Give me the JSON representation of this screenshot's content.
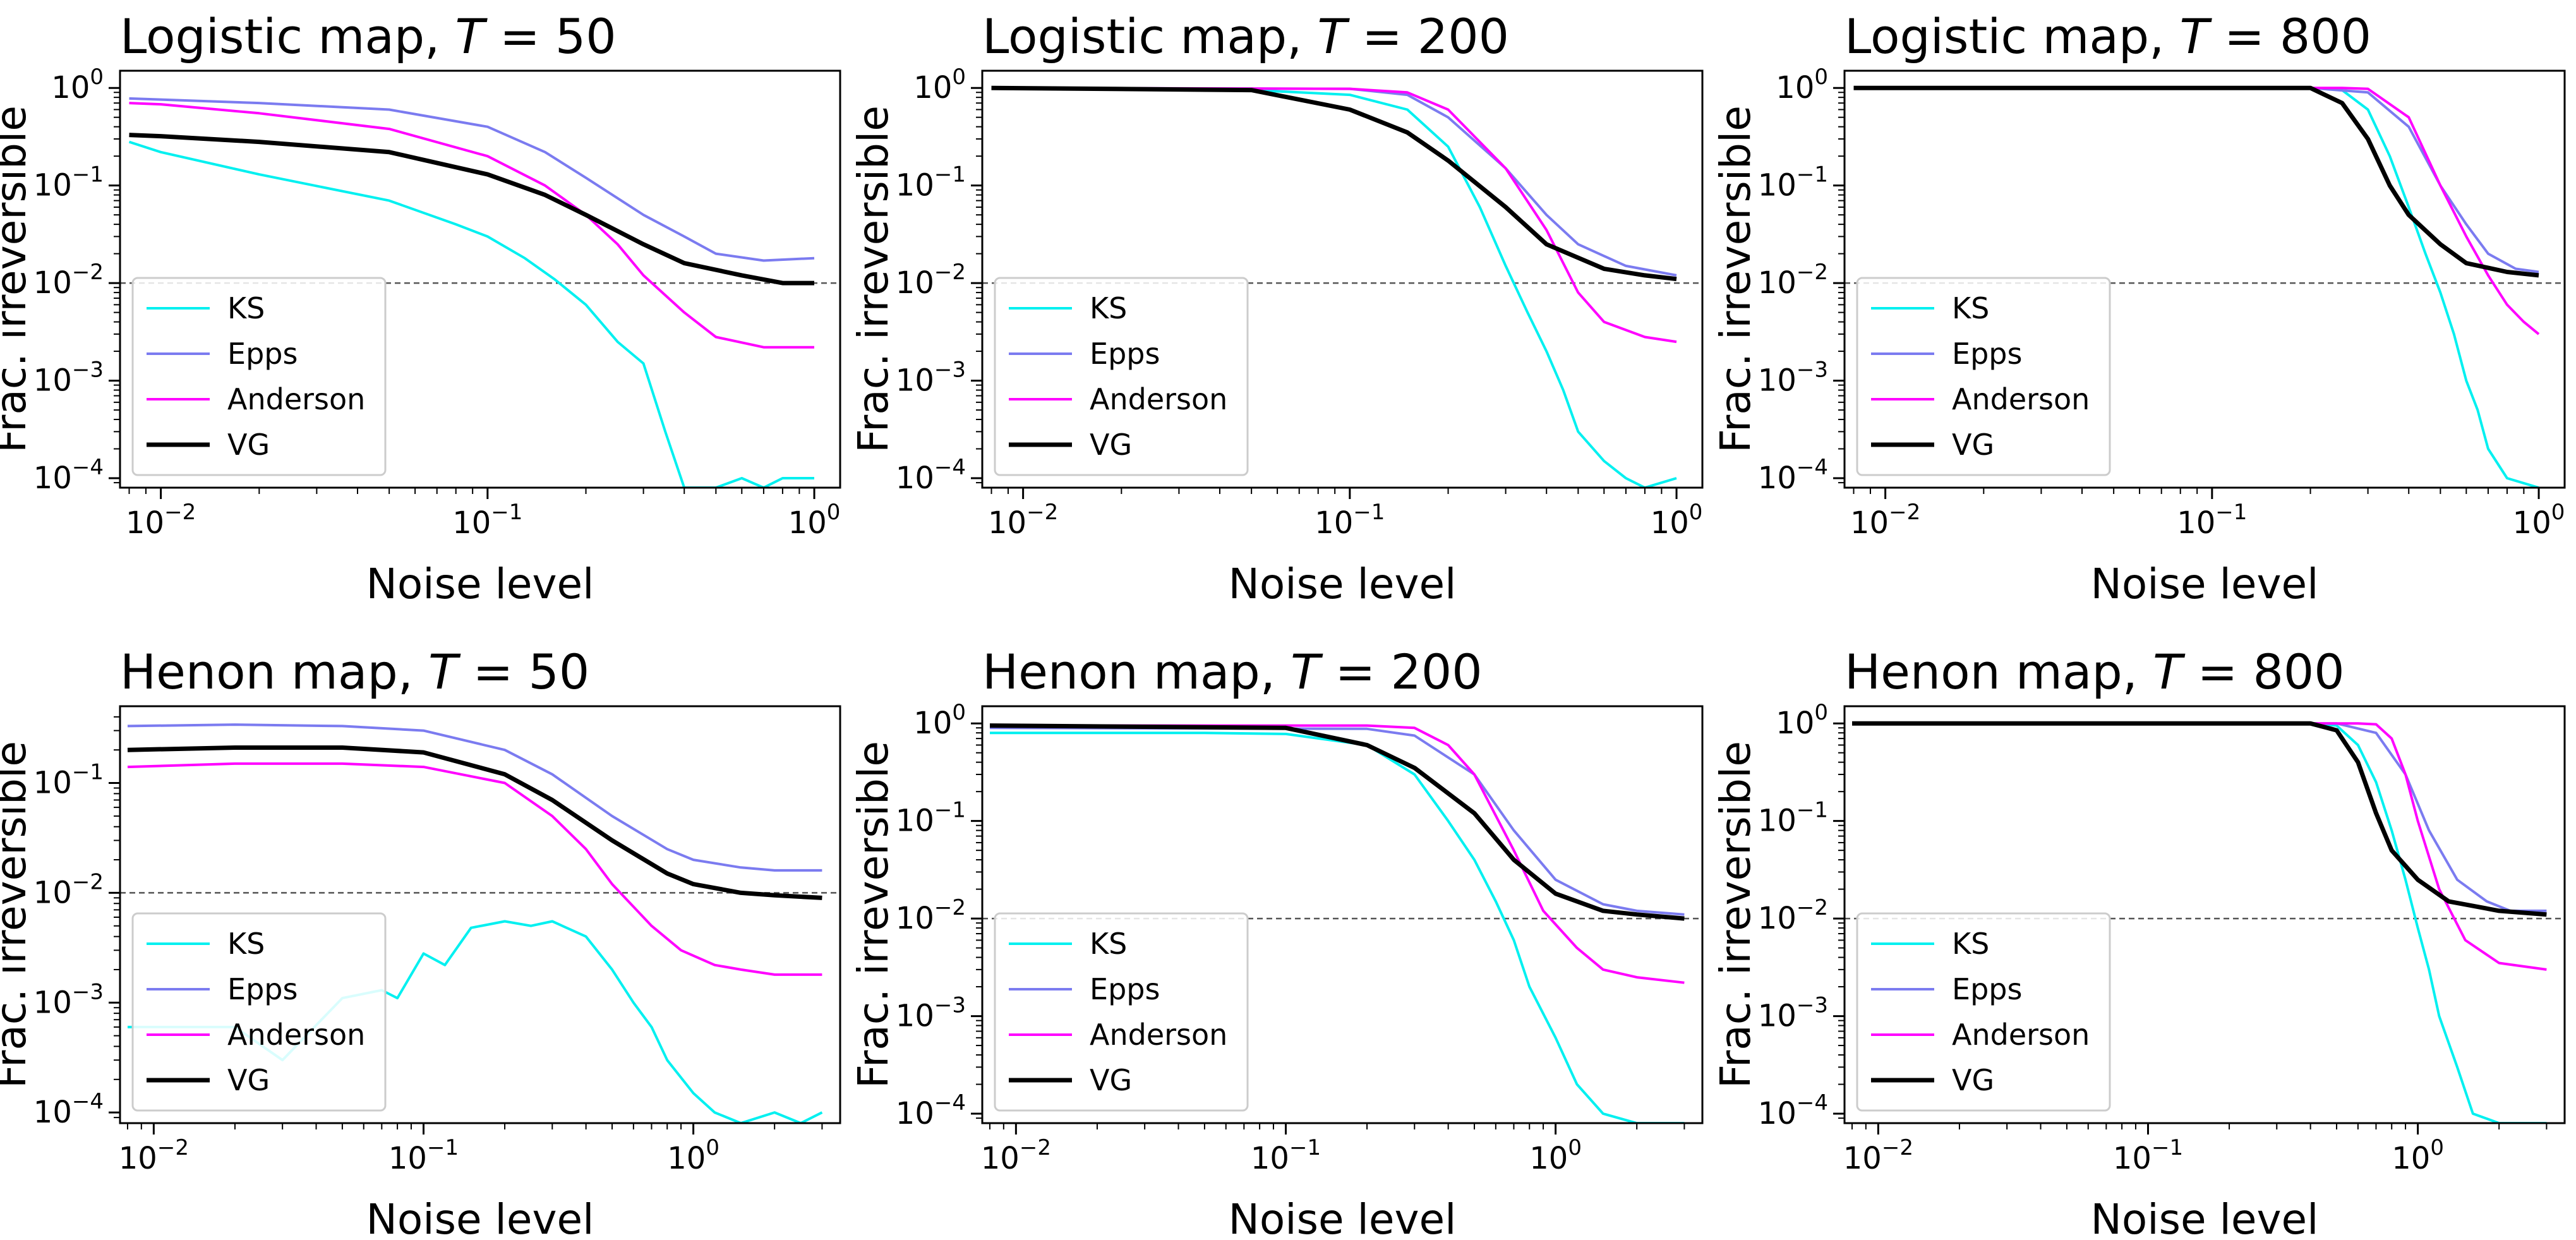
{
  "figure": {
    "xlabel": "Noise level",
    "ylabel": "Frac. irreversible",
    "threshold": 0.01,
    "series_styles": [
      {
        "name": "KS",
        "color": "#00f0f0",
        "width": 4
      },
      {
        "name": "Epps",
        "color": "#7b7bf0",
        "width": 4
      },
      {
        "name": "Anderson",
        "color": "#ff00ff",
        "width": 4
      },
      {
        "name": "VG",
        "color": "#000000",
        "width": 7
      }
    ]
  },
  "chart_data": [
    {
      "type": "line",
      "title_prefix": "Logistic map, ",
      "title_var": "T",
      "title_eq": " = 50",
      "xscale": "log",
      "yscale": "log",
      "xlim": [
        0.0075,
        1.2
      ],
      "ylim": [
        8e-05,
        1.5
      ],
      "xticks": [
        0.01,
        0.1,
        1
      ],
      "xticklabels": [
        [
          "10",
          "−2"
        ],
        [
          "10",
          "−1"
        ],
        [
          "10",
          "0"
        ]
      ],
      "yticks": [
        0.0001,
        0.001,
        0.01,
        0.1,
        1
      ],
      "yticklabels": [
        [
          "10",
          "−4"
        ],
        [
          "10",
          "−3"
        ],
        [
          "10",
          "−2"
        ],
        [
          "10",
          "−1"
        ],
        [
          "10",
          "0"
        ]
      ],
      "legend": [
        "KS",
        "Epps",
        "Anderson",
        "VG"
      ],
      "legend_loc": "lower left",
      "series": [
        {
          "name": "KS",
          "x": [
            0.008,
            0.01,
            0.02,
            0.05,
            0.08,
            0.1,
            0.13,
            0.16,
            0.2,
            0.25,
            0.3,
            0.35,
            0.4,
            0.5,
            0.6,
            0.7,
            0.8,
            1.0
          ],
          "y": [
            0.28,
            0.22,
            0.13,
            0.07,
            0.04,
            0.03,
            0.018,
            0.011,
            0.006,
            0.0025,
            0.0015,
            0.0003,
            8e-05,
            8e-05,
            0.0001,
            8e-05,
            0.0001,
            0.0001
          ]
        },
        {
          "name": "Epps",
          "x": [
            0.008,
            0.01,
            0.02,
            0.05,
            0.1,
            0.15,
            0.2,
            0.3,
            0.4,
            0.5,
            0.7,
            1.0
          ],
          "y": [
            0.78,
            0.76,
            0.7,
            0.6,
            0.4,
            0.22,
            0.12,
            0.05,
            0.03,
            0.02,
            0.017,
            0.018
          ]
        },
        {
          "name": "Anderson",
          "x": [
            0.008,
            0.01,
            0.02,
            0.05,
            0.1,
            0.15,
            0.2,
            0.25,
            0.3,
            0.4,
            0.5,
            0.7,
            1.0
          ],
          "y": [
            0.7,
            0.68,
            0.55,
            0.38,
            0.2,
            0.1,
            0.05,
            0.025,
            0.012,
            0.005,
            0.0028,
            0.0022,
            0.0022
          ]
        },
        {
          "name": "VG",
          "x": [
            0.008,
            0.01,
            0.02,
            0.05,
            0.1,
            0.15,
            0.2,
            0.3,
            0.4,
            0.6,
            0.8,
            1.0
          ],
          "y": [
            0.33,
            0.32,
            0.28,
            0.22,
            0.13,
            0.08,
            0.05,
            0.025,
            0.016,
            0.012,
            0.01,
            0.01
          ]
        }
      ]
    },
    {
      "type": "line",
      "title_prefix": "Logistic map, ",
      "title_var": "T",
      "title_eq": " = 200",
      "xscale": "log",
      "yscale": "log",
      "xlim": [
        0.0075,
        1.2
      ],
      "ylim": [
        8e-05,
        1.5
      ],
      "xticks": [
        0.01,
        0.1,
        1
      ],
      "xticklabels": [
        [
          "10",
          "−2"
        ],
        [
          "10",
          "−1"
        ],
        [
          "10",
          "0"
        ]
      ],
      "yticks": [
        0.0001,
        0.001,
        0.01,
        0.1,
        1
      ],
      "yticklabels": [
        [
          "10",
          "−4"
        ],
        [
          "10",
          "−3"
        ],
        [
          "10",
          "−2"
        ],
        [
          "10",
          "−1"
        ],
        [
          "10",
          "0"
        ]
      ],
      "legend": [
        "KS",
        "Epps",
        "Anderson",
        "VG"
      ],
      "legend_loc": "lower left",
      "series": [
        {
          "name": "KS",
          "x": [
            0.008,
            0.05,
            0.1,
            0.15,
            0.2,
            0.25,
            0.3,
            0.35,
            0.4,
            0.45,
            0.5,
            0.6,
            0.7,
            0.8,
            1.0
          ],
          "y": [
            1,
            0.95,
            0.85,
            0.6,
            0.25,
            0.06,
            0.015,
            0.005,
            0.002,
            0.0008,
            0.0003,
            0.00015,
            0.0001,
            8e-05,
            0.0001
          ]
        },
        {
          "name": "Epps",
          "x": [
            0.008,
            0.1,
            0.15,
            0.2,
            0.3,
            0.4,
            0.5,
            0.7,
            1.0
          ],
          "y": [
            1,
            0.98,
            0.85,
            0.5,
            0.15,
            0.05,
            0.025,
            0.015,
            0.012
          ]
        },
        {
          "name": "Anderson",
          "x": [
            0.008,
            0.1,
            0.15,
            0.2,
            0.3,
            0.4,
            0.5,
            0.6,
            0.8,
            1.0
          ],
          "y": [
            1,
            0.98,
            0.9,
            0.6,
            0.15,
            0.035,
            0.008,
            0.004,
            0.0028,
            0.0025
          ]
        },
        {
          "name": "VG",
          "x": [
            0.008,
            0.05,
            0.1,
            0.15,
            0.2,
            0.3,
            0.4,
            0.6,
            0.8,
            1.0
          ],
          "y": [
            1,
            0.95,
            0.6,
            0.35,
            0.18,
            0.06,
            0.025,
            0.014,
            0.012,
            0.011
          ]
        }
      ]
    },
    {
      "type": "line",
      "title_prefix": "Logistic map, ",
      "title_var": "T",
      "title_eq": " = 800",
      "xscale": "log",
      "yscale": "log",
      "xlim": [
        0.0075,
        1.2
      ],
      "ylim": [
        8e-05,
        1.5
      ],
      "xticks": [
        0.01,
        0.1,
        1
      ],
      "xticklabels": [
        [
          "10",
          "−2"
        ],
        [
          "10",
          "−1"
        ],
        [
          "10",
          "0"
        ]
      ],
      "yticks": [
        0.0001,
        0.001,
        0.01,
        0.1,
        1
      ],
      "yticklabels": [
        [
          "10",
          "−4"
        ],
        [
          "10",
          "−3"
        ],
        [
          "10",
          "−2"
        ],
        [
          "10",
          "−1"
        ],
        [
          "10",
          "0"
        ]
      ],
      "legend": [
        "KS",
        "Epps",
        "Anderson",
        "VG"
      ],
      "legend_loc": "lower left",
      "series": [
        {
          "name": "KS",
          "x": [
            0.008,
            0.2,
            0.25,
            0.3,
            0.35,
            0.4,
            0.45,
            0.5,
            0.55,
            0.6,
            0.65,
            0.7,
            0.8,
            1.0
          ],
          "y": [
            1,
            1,
            0.95,
            0.6,
            0.2,
            0.06,
            0.02,
            0.008,
            0.003,
            0.001,
            0.0005,
            0.0002,
            0.0001,
            8e-05
          ]
        },
        {
          "name": "Epps",
          "x": [
            0.008,
            0.2,
            0.3,
            0.4,
            0.5,
            0.6,
            0.7,
            0.85,
            1.0
          ],
          "y": [
            1,
            1,
            0.9,
            0.4,
            0.1,
            0.04,
            0.02,
            0.014,
            0.013
          ]
        },
        {
          "name": "Anderson",
          "x": [
            0.008,
            0.25,
            0.3,
            0.4,
            0.5,
            0.6,
            0.7,
            0.8,
            0.9,
            1.0
          ],
          "y": [
            1,
            1,
            0.98,
            0.5,
            0.1,
            0.03,
            0.012,
            0.006,
            0.004,
            0.003
          ]
        },
        {
          "name": "VG",
          "x": [
            0.008,
            0.2,
            0.25,
            0.3,
            0.35,
            0.4,
            0.5,
            0.6,
            0.8,
            1.0
          ],
          "y": [
            1,
            1,
            0.7,
            0.3,
            0.1,
            0.05,
            0.025,
            0.016,
            0.013,
            0.012
          ]
        }
      ]
    },
    {
      "type": "line",
      "title_prefix": "Henon map, ",
      "title_var": "T",
      "title_eq": " = 50",
      "xscale": "log",
      "yscale": "log",
      "xlim": [
        0.0075,
        3.5
      ],
      "ylim": [
        8e-05,
        0.5
      ],
      "xticks": [
        0.01,
        0.1,
        1
      ],
      "xticklabels": [
        [
          "10",
          "−2"
        ],
        [
          "10",
          "−1"
        ],
        [
          "10",
          "0"
        ]
      ],
      "yticks": [
        0.0001,
        0.001,
        0.01,
        0.1
      ],
      "yticklabels": [
        [
          "10",
          "−4"
        ],
        [
          "10",
          "−3"
        ],
        [
          "10",
          "−2"
        ],
        [
          "10",
          "−1"
        ]
      ],
      "legend": [
        "KS",
        "Epps",
        "Anderson",
        "VG"
      ],
      "legend_loc": "lower left",
      "series": [
        {
          "name": "KS",
          "x": [
            0.008,
            0.02,
            0.03,
            0.05,
            0.07,
            0.08,
            0.1,
            0.12,
            0.15,
            0.2,
            0.25,
            0.3,
            0.4,
            0.5,
            0.6,
            0.7,
            0.8,
            1.0,
            1.2,
            1.5,
            2.0,
            2.5,
            3.0
          ],
          "y": [
            0.0006,
            0.0006,
            0.0003,
            0.0011,
            0.0013,
            0.0011,
            0.0028,
            0.0022,
            0.0048,
            0.0055,
            0.005,
            0.0055,
            0.004,
            0.002,
            0.001,
            0.0006,
            0.0003,
            0.00015,
            0.0001,
            8e-05,
            0.0001,
            8e-05,
            0.0001
          ]
        },
        {
          "name": "Epps",
          "x": [
            0.008,
            0.02,
            0.05,
            0.1,
            0.2,
            0.3,
            0.5,
            0.8,
            1.0,
            1.5,
            2.0,
            3.0
          ],
          "y": [
            0.33,
            0.34,
            0.33,
            0.3,
            0.2,
            0.12,
            0.05,
            0.025,
            0.02,
            0.017,
            0.016,
            0.016
          ]
        },
        {
          "name": "Anderson",
          "x": [
            0.008,
            0.02,
            0.05,
            0.1,
            0.2,
            0.3,
            0.4,
            0.5,
            0.7,
            0.9,
            1.2,
            1.5,
            2.0,
            3.0
          ],
          "y": [
            0.14,
            0.15,
            0.15,
            0.14,
            0.1,
            0.05,
            0.025,
            0.012,
            0.005,
            0.003,
            0.0022,
            0.002,
            0.0018,
            0.0018
          ]
        },
        {
          "name": "VG",
          "x": [
            0.008,
            0.02,
            0.05,
            0.1,
            0.2,
            0.3,
            0.5,
            0.8,
            1.0,
            1.5,
            2.0,
            3.0
          ],
          "y": [
            0.2,
            0.21,
            0.21,
            0.19,
            0.12,
            0.07,
            0.03,
            0.015,
            0.012,
            0.01,
            0.0095,
            0.009
          ]
        }
      ]
    },
    {
      "type": "line",
      "title_prefix": "Henon map, ",
      "title_var": "T",
      "title_eq": " = 200",
      "xscale": "log",
      "yscale": "log",
      "xlim": [
        0.0075,
        3.5
      ],
      "ylim": [
        8e-05,
        1.5
      ],
      "xticks": [
        0.01,
        0.1,
        1
      ],
      "xticklabels": [
        [
          "10",
          "−2"
        ],
        [
          "10",
          "−1"
        ],
        [
          "10",
          "0"
        ]
      ],
      "yticks": [
        0.0001,
        0.001,
        0.01,
        0.1,
        1
      ],
      "yticklabels": [
        [
          "10",
          "−4"
        ],
        [
          "10",
          "−3"
        ],
        [
          "10",
          "−2"
        ],
        [
          "10",
          "−1"
        ],
        [
          "10",
          "0"
        ]
      ],
      "legend": [
        "KS",
        "Epps",
        "Anderson",
        "VG"
      ],
      "legend_loc": "lower left",
      "series": [
        {
          "name": "KS",
          "x": [
            0.008,
            0.05,
            0.1,
            0.2,
            0.3,
            0.4,
            0.5,
            0.6,
            0.7,
            0.8,
            1.0,
            1.2,
            1.5,
            2.0,
            3.0
          ],
          "y": [
            0.8,
            0.8,
            0.78,
            0.6,
            0.3,
            0.1,
            0.04,
            0.015,
            0.006,
            0.002,
            0.0006,
            0.0002,
            0.0001,
            8e-05,
            8e-05
          ]
        },
        {
          "name": "Epps",
          "x": [
            0.008,
            0.2,
            0.3,
            0.5,
            0.7,
            1.0,
            1.5,
            2.0,
            3.0
          ],
          "y": [
            0.9,
            0.88,
            0.75,
            0.3,
            0.08,
            0.025,
            0.014,
            0.012,
            0.011
          ]
        },
        {
          "name": "Anderson",
          "x": [
            0.008,
            0.2,
            0.3,
            0.4,
            0.5,
            0.7,
            0.9,
            1.2,
            1.5,
            2.0,
            3.0
          ],
          "y": [
            0.95,
            0.95,
            0.9,
            0.6,
            0.3,
            0.05,
            0.012,
            0.005,
            0.003,
            0.0025,
            0.0022
          ]
        },
        {
          "name": "VG",
          "x": [
            0.008,
            0.1,
            0.2,
            0.3,
            0.5,
            0.7,
            1.0,
            1.5,
            2.0,
            3.0
          ],
          "y": [
            0.95,
            0.9,
            0.6,
            0.35,
            0.12,
            0.04,
            0.018,
            0.012,
            0.011,
            0.01
          ]
        }
      ]
    },
    {
      "type": "line",
      "title_prefix": "Henon map, ",
      "title_var": "T",
      "title_eq": " = 800",
      "xscale": "log",
      "yscale": "log",
      "xlim": [
        0.0075,
        3.5
      ],
      "ylim": [
        8e-05,
        1.5
      ],
      "xticks": [
        0.01,
        0.1,
        1
      ],
      "xticklabels": [
        [
          "10",
          "−2"
        ],
        [
          "10",
          "−1"
        ],
        [
          "10",
          "0"
        ]
      ],
      "yticks": [
        0.0001,
        0.001,
        0.01,
        0.1,
        1
      ],
      "yticklabels": [
        [
          "10",
          "−4"
        ],
        [
          "10",
          "−3"
        ],
        [
          "10",
          "−2"
        ],
        [
          "10",
          "−1"
        ],
        [
          "10",
          "0"
        ]
      ],
      "legend": [
        "KS",
        "Epps",
        "Anderson",
        "VG"
      ],
      "legend_loc": "lower left",
      "series": [
        {
          "name": "KS",
          "x": [
            0.008,
            0.4,
            0.5,
            0.6,
            0.7,
            0.8,
            0.9,
            1.0,
            1.1,
            1.2,
            1.4,
            1.6,
            2.0,
            3.0
          ],
          "y": [
            1,
            1,
            0.95,
            0.6,
            0.25,
            0.08,
            0.025,
            0.008,
            0.003,
            0.001,
            0.0003,
            0.0001,
            8e-05,
            8e-05
          ]
        },
        {
          "name": "Epps",
          "x": [
            0.008,
            0.5,
            0.7,
            0.9,
            1.1,
            1.4,
            1.8,
            2.2,
            3.0
          ],
          "y": [
            1,
            1,
            0.8,
            0.3,
            0.08,
            0.025,
            0.015,
            0.012,
            0.012
          ]
        },
        {
          "name": "Anderson",
          "x": [
            0.008,
            0.6,
            0.7,
            0.8,
            0.9,
            1.0,
            1.2,
            1.5,
            2.0,
            3.0
          ],
          "y": [
            1,
            1,
            0.98,
            0.7,
            0.3,
            0.1,
            0.02,
            0.006,
            0.0035,
            0.003
          ]
        },
        {
          "name": "VG",
          "x": [
            0.008,
            0.4,
            0.5,
            0.6,
            0.7,
            0.8,
            1.0,
            1.3,
            2.0,
            3.0
          ],
          "y": [
            1,
            1,
            0.85,
            0.4,
            0.12,
            0.05,
            0.025,
            0.015,
            0.012,
            0.011
          ]
        }
      ]
    }
  ]
}
